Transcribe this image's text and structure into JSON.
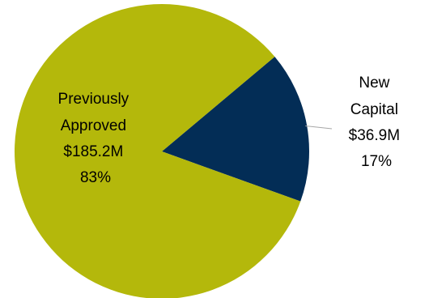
{
  "chart_data": {
    "type": "pie",
    "slices": [
      {
        "name": "Previously Approved",
        "label_lines": [
          "Previously",
          "Approved"
        ],
        "value_label": "$185.2M",
        "value": 185.2,
        "percent": 83,
        "percent_label": "83%",
        "color": "#b4b80b"
      },
      {
        "name": "New Capital",
        "label_lines": [
          "New",
          "Capital"
        ],
        "value_label": "$36.9M",
        "value": 36.9,
        "percent": 17,
        "percent_label": "17%",
        "color": "#032d56"
      }
    ],
    "start_angle_deg": 40,
    "direction": "clockwise",
    "leader_line_color": "#a6a6a6"
  }
}
